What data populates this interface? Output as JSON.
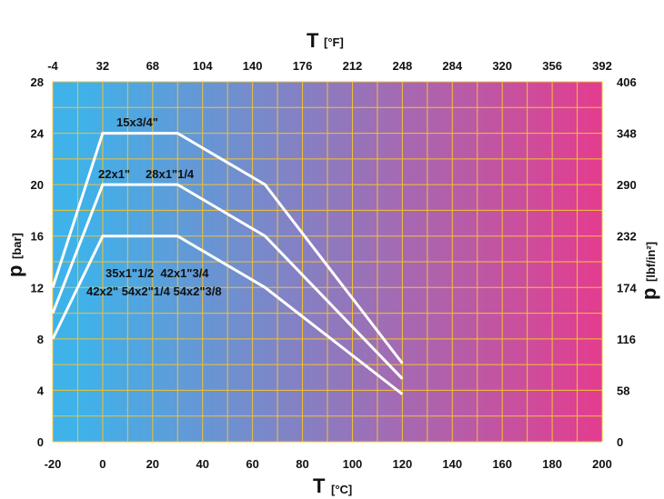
{
  "chart_data": {
    "type": "line",
    "x_bottom": {
      "symbol": "T",
      "unit": "[°C]",
      "range": [
        -20,
        200
      ],
      "ticks": [
        -20,
        0,
        20,
        40,
        60,
        80,
        100,
        120,
        140,
        160,
        180,
        200
      ]
    },
    "x_top": {
      "symbol": "T",
      "unit": "[°F]",
      "ticks": [
        "-4",
        "32",
        "68",
        "104",
        "140",
        "176",
        "212",
        "248",
        "284",
        "320",
        "356",
        "392"
      ]
    },
    "y_left": {
      "symbol": "p",
      "unit": "[bar]",
      "range": [
        0,
        28
      ],
      "ticks": [
        0,
        4,
        8,
        12,
        16,
        20,
        24,
        28
      ]
    },
    "y_right": {
      "symbol": "p",
      "unit": "[lbf/in²]",
      "ticks": [
        "0",
        "58",
        "116",
        "174",
        "232",
        "290",
        "348",
        "406"
      ]
    },
    "grid": true,
    "background_gradient": {
      "left": "#3fb2ea",
      "right": "#e43c8f"
    },
    "grid_color": "#f2c233",
    "line_color": "#ffffff",
    "series": [
      {
        "points": [
          [
            -20,
            12
          ],
          [
            0,
            24
          ],
          [
            30,
            24
          ],
          [
            65,
            20
          ],
          [
            120,
            6.1
          ]
        ],
        "labels": [
          "15x3/4\""
        ]
      },
      {
        "points": [
          [
            -20,
            10
          ],
          [
            0,
            20
          ],
          [
            30,
            20
          ],
          [
            65,
            16
          ],
          [
            120,
            4.9
          ]
        ],
        "labels": [
          "22x1\"",
          "28x1\"1/4"
        ]
      },
      {
        "points": [
          [
            -20,
            8
          ],
          [
            0,
            16
          ],
          [
            30,
            16
          ],
          [
            65,
            12
          ],
          [
            120,
            3.7
          ]
        ],
        "labels": [
          "35x1\"1/2  42x1\"3/4",
          "42x2\" 54x2\"1/4 54x2\"3/8"
        ]
      }
    ]
  }
}
